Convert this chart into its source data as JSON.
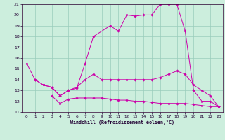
{
  "bg_color": "#cceedd",
  "grid_color": "#99ccbb",
  "line_color": "#cc00aa",
  "line2_x": [
    0,
    1,
    2,
    3,
    4,
    5,
    6,
    7,
    8,
    10,
    11,
    12,
    13,
    14,
    15,
    16,
    17,
    18,
    19,
    20,
    21,
    22,
    23
  ],
  "line2_y": [
    15.5,
    14.0,
    13.5,
    13.3,
    12.5,
    13.0,
    13.2,
    15.5,
    18.0,
    19.0,
    18.5,
    20.0,
    19.9,
    20.0,
    20.0,
    21.0,
    21.0,
    21.0,
    18.5,
    13.0,
    12.0,
    12.0,
    11.5
  ],
  "line3_x": [
    1,
    2,
    3,
    4,
    5,
    6,
    7,
    8,
    9,
    10,
    11,
    12,
    13,
    14,
    15,
    16,
    17,
    18,
    19,
    20,
    21,
    22,
    23
  ],
  "line3_y": [
    14.0,
    13.5,
    13.3,
    12.5,
    13.0,
    13.3,
    14.0,
    14.5,
    14.0,
    14.0,
    14.0,
    14.0,
    14.0,
    14.0,
    14.0,
    14.2,
    14.5,
    14.8,
    14.5,
    13.5,
    13.0,
    12.5,
    11.5
  ],
  "line4_x": [
    3,
    4,
    5,
    6,
    7,
    8,
    9,
    10,
    11,
    12,
    13,
    14,
    15,
    16,
    17,
    18,
    19,
    20,
    21,
    22,
    23
  ],
  "line4_y": [
    12.5,
    11.8,
    12.2,
    12.3,
    12.3,
    12.3,
    12.3,
    12.2,
    12.1,
    12.1,
    12.0,
    12.0,
    11.9,
    11.8,
    11.8,
    11.8,
    11.8,
    11.7,
    11.6,
    11.5,
    11.5
  ],
  "xlabel": "Windchill (Refroidissement éolien,°C)",
  "xlim": [
    -0.5,
    23.5
  ],
  "ylim": [
    11,
    21
  ],
  "xticks": [
    0,
    1,
    2,
    3,
    4,
    5,
    6,
    7,
    8,
    9,
    10,
    11,
    12,
    13,
    14,
    15,
    16,
    17,
    18,
    19,
    20,
    21,
    22,
    23
  ],
  "yticks": [
    11,
    12,
    13,
    14,
    15,
    16,
    17,
    18,
    19,
    20,
    21
  ]
}
